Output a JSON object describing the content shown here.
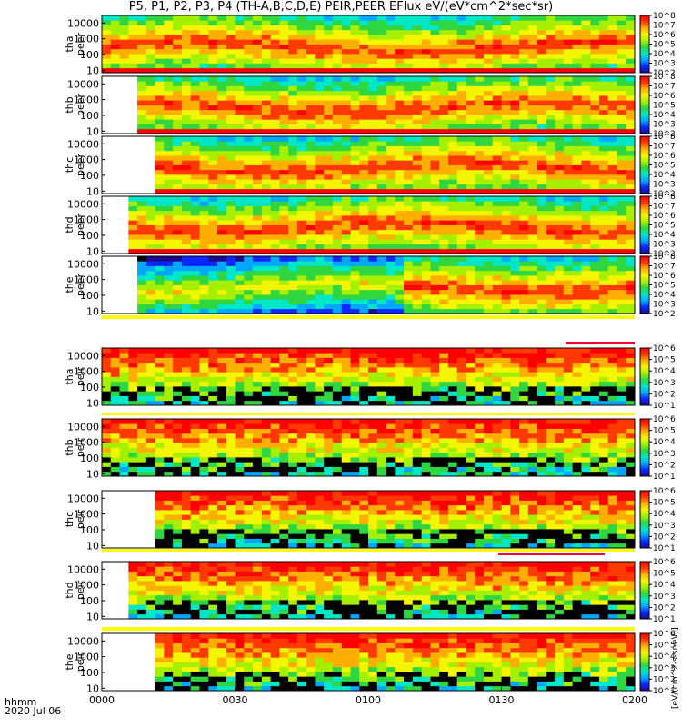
{
  "title": "P5, P1, P2, P3, P4 (TH-A,B,C,D,E) PEIR,PEER EFlux eV/(eV*cm^2*sec*sr)",
  "footer": {
    "time_label": "hhmm",
    "date_label": "2020 Jul 06"
  },
  "colorbar_unit_label": "[eV/(cm^2-s-sr-eV)]",
  "colormap": [
    "#1c0a8c",
    "#0d27ff",
    "#00a7ff",
    "#00e7c8",
    "#2fd640",
    "#a4f000",
    "#f4f500",
    "#ffaf00",
    "#ff3a00",
    "#ff0000"
  ],
  "chart_data": {
    "type": "heatmap",
    "x_axis": {
      "label": "",
      "ticks": [
        "0000",
        "0030",
        "0100",
        "0130",
        "0200"
      ],
      "range": [
        "00:00",
        "02:00"
      ]
    },
    "y_scale": "log",
    "y_ticks": [
      "10",
      "100",
      "1000",
      "10000"
    ],
    "color_scale": "log",
    "panels": [
      {
        "name": "tha peer",
        "label_line1": "tha",
        "label_line2": "peer",
        "cb_ticks": [
          "10^2",
          "10^3",
          "10^4",
          "10^5",
          "10^6",
          "10^7",
          "10^8"
        ],
        "cb_range": [
          100,
          100000000
        ],
        "flag": "none"
      },
      {
        "name": "thb peer",
        "label_line1": "thb",
        "label_line2": "peer",
        "cb_ticks": [
          "10^2",
          "10^3",
          "10^4",
          "10^5",
          "10^6",
          "10^7",
          "10^8"
        ],
        "cb_range": [
          100,
          100000000
        ],
        "flag": "none"
      },
      {
        "name": "thc peer",
        "label_line1": "thc",
        "label_line2": "peer",
        "cb_ticks": [
          "10^2",
          "10^3",
          "10^4",
          "10^5",
          "10^6",
          "10^7",
          "10^8"
        ],
        "cb_range": [
          100,
          100000000
        ],
        "flag": "none"
      },
      {
        "name": "thd peer",
        "label_line1": "thd",
        "label_line2": "peer",
        "cb_ticks": [
          "10^2",
          "10^3",
          "10^4",
          "10^5",
          "10^6",
          "10^7",
          "10^8"
        ],
        "cb_range": [
          100,
          100000000
        ],
        "flag": "none"
      },
      {
        "name": "the peer",
        "label_line1": "the",
        "label_line2": "peer",
        "cb_ticks": [
          "10^2",
          "10^3",
          "10^4",
          "10^5",
          "10^6",
          "10^7",
          "10^8"
        ],
        "cb_range": [
          100,
          100000000
        ],
        "flag": "red_from_0145"
      },
      {
        "name": "tha peir",
        "label_line1": "tha",
        "label_line2": "peir",
        "cb_ticks": [
          "10^1",
          "10^2",
          "10^3",
          "10^4",
          "10^5",
          "10^6"
        ],
        "cb_range": [
          10,
          1000000
        ],
        "flag": "none"
      },
      {
        "name": "thb peir",
        "label_line1": "thb",
        "label_line2": "peir",
        "cb_ticks": [
          "10^1",
          "10^2",
          "10^3",
          "10^4",
          "10^5",
          "10^6"
        ],
        "cb_range": [
          10,
          1000000
        ],
        "flag": "none"
      },
      {
        "name": "thc peir",
        "label_line1": "thc",
        "label_line2": "peir",
        "cb_ticks": [
          "10^1",
          "10^2",
          "10^3",
          "10^4",
          "10^5",
          "10^6"
        ],
        "cb_range": [
          10,
          1000000
        ],
        "flag": "red_0130_0156"
      },
      {
        "name": "thd peir",
        "label_line1": "thd",
        "label_line2": "peir",
        "cb_ticks": [
          "10^1",
          "10^2",
          "10^3",
          "10^4",
          "10^5",
          "10^6"
        ],
        "cb_range": [
          10,
          1000000
        ],
        "flag": "yellow"
      },
      {
        "name": "the peir",
        "label_line1": "the",
        "label_line2": "peir",
        "cb_ticks": [
          "10^1",
          "10^2",
          "10^3",
          "10^4",
          "10^5",
          "10^6"
        ],
        "cb_range": [
          10,
          1000000
        ],
        "flag": "none"
      }
    ]
  }
}
